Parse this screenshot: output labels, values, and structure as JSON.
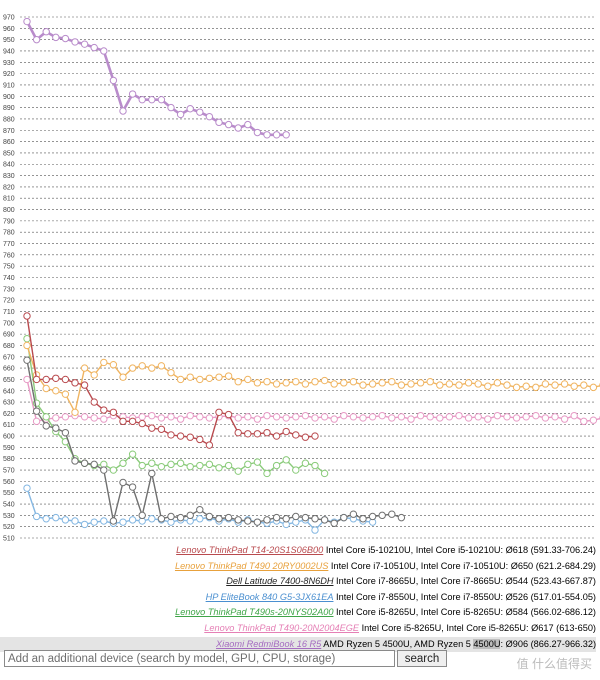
{
  "chart_data": {
    "type": "line",
    "ylim": [
      510,
      970
    ],
    "ytick_step": 10,
    "grid": true,
    "legend_placement": "bottom-right",
    "series": [
      {
        "device": "Lenovo ThinkPad T14-20S1S06B00",
        "spec": "Intel Core i5-10210U, Intel Core i5-10210U: Ø618 (591.33-706.24)",
        "color": "#b94a4e",
        "values": [
          706,
          650,
          650,
          651,
          650,
          647,
          645,
          630,
          623,
          621,
          613,
          613,
          611,
          607,
          606,
          601,
          600,
          599,
          597,
          592,
          621,
          619,
          603,
          602,
          602,
          603,
          600,
          604,
          601,
          599,
          600
        ]
      },
      {
        "device": "Lenovo ThinkPad T490 20RY0002US",
        "spec": "Intel Core i7-10510U, Intel Core i7-10510U: Ø650 (621.2-684.29)",
        "color": "#f0b460",
        "values": [
          680,
          654,
          642,
          640,
          637,
          621,
          660,
          654,
          665,
          663,
          652,
          660,
          662,
          660,
          662,
          656,
          650,
          652,
          650,
          651,
          652,
          653,
          648,
          650,
          647,
          648,
          646,
          647,
          648,
          646,
          648,
          649,
          646,
          647,
          648,
          645,
          646,
          647,
          648,
          645,
          646,
          647,
          648,
          645,
          646,
          645,
          647,
          646,
          644,
          647,
          645,
          643,
          644,
          643,
          646,
          645,
          646,
          644,
          645,
          643,
          645
        ]
      },
      {
        "device": "Dell Latitude 7400-8N6DH",
        "spec": "Intel Core i7-8665U, Intel Core i7-8665U: Ø544 (523.43-667.87)",
        "color": "#707070",
        "values": [
          667,
          622,
          609,
          607,
          603,
          578,
          576,
          575,
          570,
          525,
          559,
          555,
          530,
          567,
          527,
          529,
          528,
          530,
          535,
          529,
          527,
          528,
          526,
          525,
          524,
          526,
          528,
          527,
          529,
          528,
          527,
          526,
          523,
          528,
          531,
          527,
          529,
          530,
          531,
          528
        ]
      },
      {
        "device": "HP EliteBook 840 G5-3JX61EA",
        "spec": "Intel Core i7-8550U, Intel Core i7-8550U: Ø526 (517.01-554.05)",
        "color": "#84b7e2",
        "values": [
          554,
          529,
          527,
          528,
          526,
          525,
          522,
          524,
          525,
          523,
          524,
          526,
          525,
          527,
          526,
          524,
          526,
          525,
          527,
          528,
          525,
          527,
          524,
          526,
          524,
          523,
          525,
          522,
          524,
          526,
          517,
          526,
          524,
          528,
          527,
          525,
          524
        ]
      },
      {
        "device": "Lenovo ThinkPad T490s-20NYS02A00",
        "spec": "Intel Core i5-8265U, Intel Core i5-8265U: Ø584 (566.02-686.12)",
        "color": "#8acb7a",
        "values": [
          686,
          629,
          617,
          604,
          595,
          580,
          576,
          574,
          575,
          570,
          576,
          584,
          574,
          576,
          573,
          575,
          576,
          573,
          574,
          575,
          572,
          574,
          569,
          575,
          577,
          567,
          574,
          579,
          570,
          576,
          574,
          567
        ]
      },
      {
        "device": "Lenovo ThinkPad T490-20N2004EGE",
        "spec": "Intel Core i5-8265U, Intel Core i5-8265U: Ø617 (613-650)",
        "color": "#e79ac5",
        "values": [
          650,
          613,
          615,
          616,
          617,
          618,
          617,
          616,
          615,
          618,
          617,
          616,
          617,
          618,
          616,
          617,
          615,
          618,
          617,
          616,
          617,
          618,
          616,
          617,
          615,
          618,
          617,
          616,
          617,
          618,
          616,
          617,
          615,
          618,
          617,
          616,
          617,
          618,
          616,
          617,
          615,
          618,
          617,
          616,
          617,
          618,
          616,
          617,
          615,
          618,
          617,
          616,
          617,
          618,
          616,
          617,
          615,
          618,
          613,
          614,
          616
        ]
      },
      {
        "device": "Xiaomi RedmiBook 16 R5",
        "spec": "AMD Ryzen 5 4500U, AMD Ryzen 5 4500U: Ø906 (866.27-966.32)",
        "spec_pre": "AMD Ryzen 5 4500U, AMD Ryzen 5 ",
        "spec_hl": "4500U",
        "spec_post": ": Ø906 (866.27-966.32)",
        "color": "#b98ccb",
        "values": [
          966,
          950,
          957,
          952,
          951,
          948,
          946,
          943,
          940,
          914,
          887,
          902,
          897,
          897,
          897,
          890,
          884,
          889,
          886,
          882,
          877,
          875,
          872,
          875,
          868,
          866,
          866,
          866
        ]
      }
    ]
  },
  "search": {
    "placeholder": "Add an additional device (search by model, GPU, CPU, storage)",
    "button_label": "search"
  },
  "watermark": "值 什么值得买"
}
